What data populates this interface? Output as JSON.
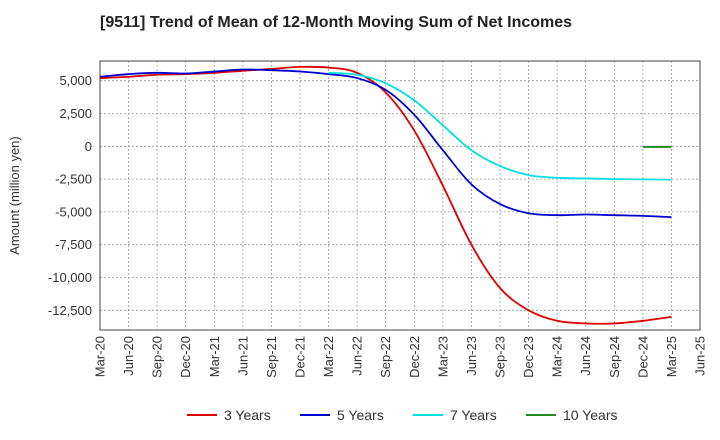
{
  "chart_data": {
    "type": "line",
    "title": "[9511]  Trend of Mean of 12-Month Moving Sum of Net Incomes",
    "xlabel": "",
    "ylabel": "Amount (million yen)",
    "x_tick_labels": [
      "Mar-20",
      "Jun-20",
      "Sep-20",
      "Dec-20",
      "Mar-21",
      "Jun-21",
      "Sep-21",
      "Dec-21",
      "Mar-22",
      "Jun-22",
      "Sep-22",
      "Dec-22",
      "Mar-23",
      "Jun-23",
      "Sep-23",
      "Dec-23",
      "Mar-24",
      "Jun-24",
      "Sep-24",
      "Dec-24",
      "Mar-25",
      "Jun-25"
    ],
    "y_ticks": [
      5000,
      2500,
      0,
      -2500,
      -5000,
      -7500,
      -10000,
      -12500
    ],
    "y_tick_labels": [
      "5,000",
      "2,500",
      "0",
      "-2,500",
      "-5,000",
      "-7,500",
      "-10,000",
      "-12,500"
    ],
    "ylim": [
      -14000,
      6500
    ],
    "grid": true,
    "legend_position": "bottom",
    "series": [
      {
        "name": "3 Years",
        "color": "#dd0000",
        "x": [
          "Mar-20",
          "Jun-20",
          "Sep-20",
          "Dec-20",
          "Mar-21",
          "Jun-21",
          "Sep-21",
          "Dec-21",
          "Mar-22",
          "Jun-22",
          "Sep-22",
          "Dec-22",
          "Mar-23",
          "Jun-23",
          "Sep-23",
          "Dec-23",
          "Mar-24",
          "Jun-24",
          "Sep-24",
          "Dec-24",
          "Mar-25"
        ],
        "values": [
          5200,
          5300,
          5450,
          5500,
          5600,
          5750,
          5900,
          6050,
          6000,
          5600,
          4100,
          1200,
          -3000,
          -7500,
          -10800,
          -12500,
          -13300,
          -13500,
          -13500,
          -13300,
          -13000
        ]
      },
      {
        "name": "5 Years",
        "color": "#0000cc",
        "x": [
          "Mar-20",
          "Jun-20",
          "Sep-20",
          "Dec-20",
          "Mar-21",
          "Jun-21",
          "Sep-21",
          "Dec-21",
          "Mar-22",
          "Jun-22",
          "Sep-22",
          "Dec-22",
          "Mar-23",
          "Jun-23",
          "Sep-23",
          "Dec-23",
          "Mar-24",
          "Jun-24",
          "Sep-24",
          "Dec-24",
          "Mar-25"
        ],
        "values": [
          5300,
          5500,
          5600,
          5550,
          5700,
          5850,
          5800,
          5700,
          5500,
          5200,
          4300,
          2400,
          -300,
          -2900,
          -4400,
          -5100,
          -5250,
          -5200,
          -5250,
          -5300,
          -5400
        ]
      },
      {
        "name": "7 Years",
        "color": "#00e0e0",
        "x": [
          "Mar-22",
          "Jun-22",
          "Sep-22",
          "Dec-22",
          "Mar-23",
          "Jun-23",
          "Sep-23",
          "Dec-23",
          "Mar-24",
          "Jun-24",
          "Sep-24",
          "Dec-24",
          "Mar-25"
        ],
        "values": [
          5600,
          5450,
          4800,
          3500,
          1600,
          -300,
          -1500,
          -2200,
          -2400,
          -2450,
          -2500,
          -2520,
          -2550
        ]
      },
      {
        "name": "10 Years",
        "color": "#228822",
        "x": [
          "Dec-24",
          "Mar-25"
        ],
        "values": [
          -50,
          -50
        ]
      }
    ]
  }
}
